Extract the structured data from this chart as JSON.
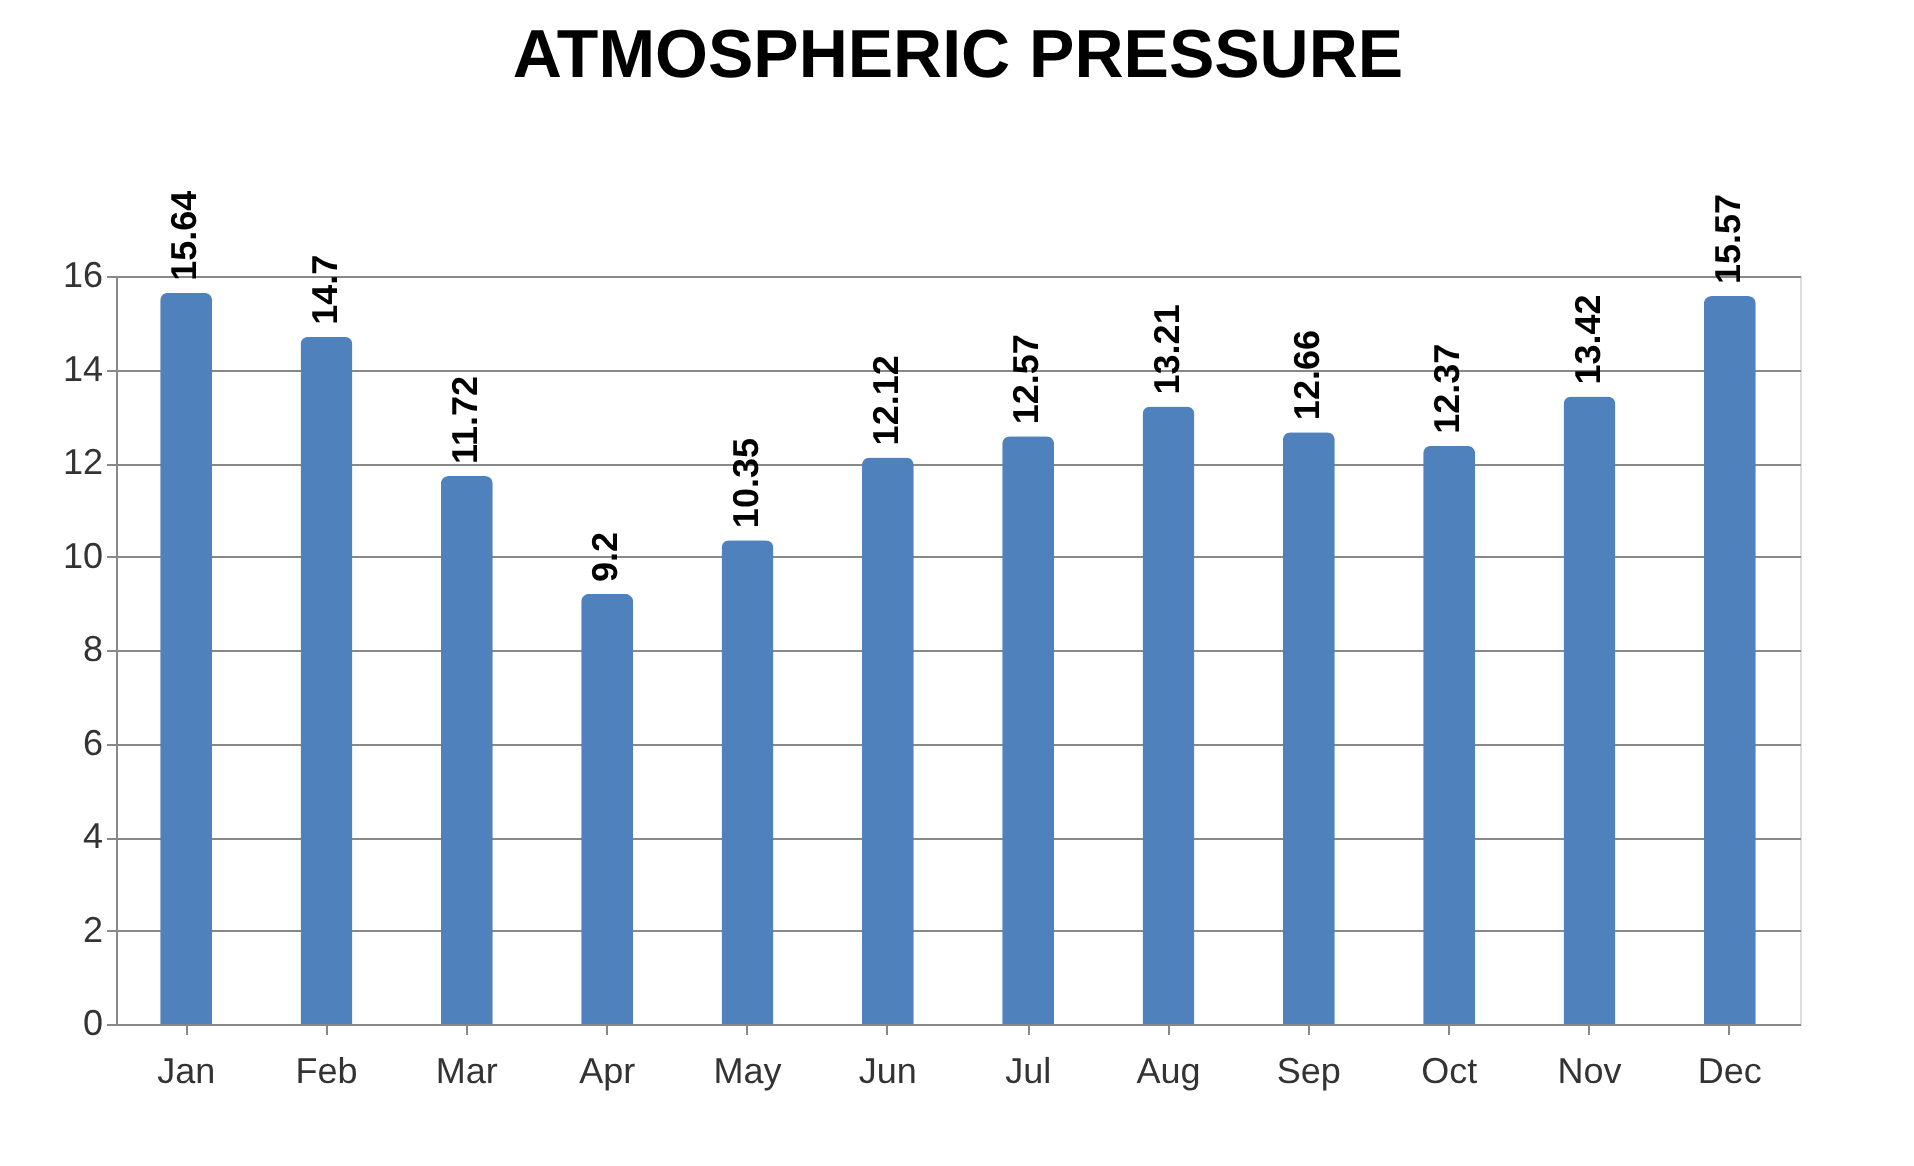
{
  "chart_data": {
    "type": "bar",
    "title": "ATMOSPHERIC PRESSURE",
    "categories": [
      "Jan",
      "Feb",
      "Mar",
      "Apr",
      "May",
      "Jun",
      "Jul",
      "Aug",
      "Sep",
      "Oct",
      "Nov",
      "Dec"
    ],
    "values": [
      15.64,
      14.7,
      11.72,
      9.2,
      10.35,
      12.12,
      12.57,
      13.21,
      12.66,
      12.37,
      13.42,
      15.57
    ],
    "color": "#4f81bd",
    "ylim": [
      0,
      16
    ],
    "yticks": [
      0,
      2,
      4,
      6,
      8,
      10,
      12,
      14,
      16
    ],
    "grid": "y",
    "data_labels": true
  }
}
